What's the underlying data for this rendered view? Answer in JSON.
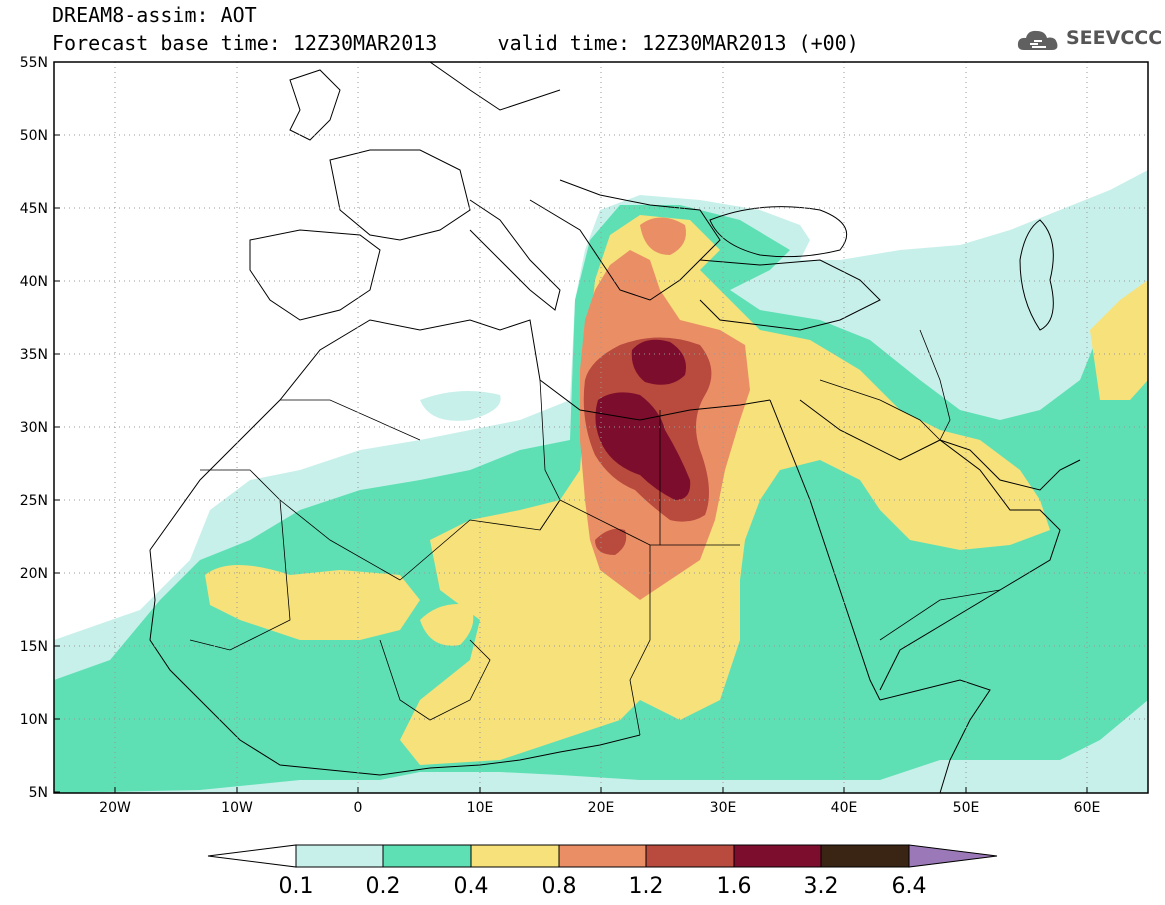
{
  "title": {
    "line1": "DREAM8-assim: AOT",
    "line2_left": "Forecast base time: 12Z30MAR2013",
    "line2_right": "valid time: 12Z30MAR2013 (+00)"
  },
  "logo": {
    "text": "SEEVCCC",
    "icon": "cloud-icon"
  },
  "map": {
    "lat_labels": [
      "55N",
      "50N",
      "45N",
      "40N",
      "35N",
      "30N",
      "25N",
      "20N",
      "15N",
      "10N",
      "5N"
    ],
    "lon_labels": [
      "20W",
      "10W",
      "0",
      "10E",
      "20E",
      "30E",
      "40E",
      "50E",
      "60E"
    ],
    "colors": {
      "c01": "#c8f0ea",
      "c02": "#5fe0b4",
      "c04": "#f7e17a",
      "c08": "#ea8e66",
      "c12": "#b84a3e",
      "c16": "#7d0d2c",
      "c32": "#3a2515",
      "c64": "#9b78b8"
    }
  },
  "colorbar": {
    "ticks": [
      "0.1",
      "0.2",
      "0.4",
      "0.8",
      "1.2",
      "1.6",
      "3.2",
      "6.4"
    ],
    "colors": [
      "#c8f0ea",
      "#5fe0b4",
      "#f7e17a",
      "#ea8e66",
      "#b84a3e",
      "#7d0d2c",
      "#3a2515"
    ],
    "under_color": "#ffffff",
    "over_color": "#9b78b8"
  }
}
